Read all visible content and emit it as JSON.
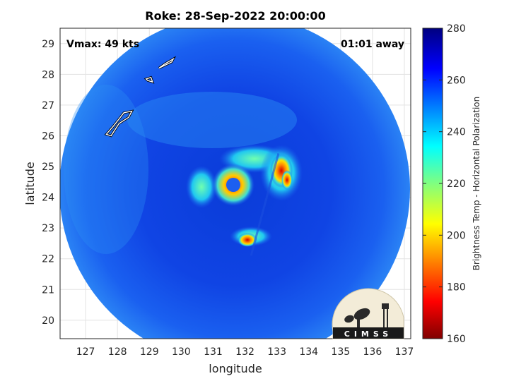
{
  "figure": {
    "title": "Roke: 28-Sep-2022 20:00:00",
    "vmax_label": "Vmax: 49 kts",
    "time_label": "01:01 away",
    "logo_text": "CIMSS"
  },
  "chart_data": {
    "type": "heatmap",
    "title": "Roke: 28-Sep-2022 20:00:00",
    "xlabel": "longitude",
    "ylabel": "latitude",
    "xlim": [
      126.2,
      137.2
    ],
    "ylim": [
      19.4,
      29.5
    ],
    "x_ticks": [
      127,
      128,
      129,
      130,
      131,
      132,
      133,
      134,
      135,
      136,
      137
    ],
    "y_ticks": [
      20,
      21,
      22,
      23,
      24,
      25,
      26,
      27,
      28,
      29
    ],
    "grid": true,
    "storm_center": {
      "lon": 131.5,
      "lat": 24.3
    },
    "colorbar": {
      "label": "Brightness Temp - Horizontal Polarization",
      "min": 160,
      "max": 280,
      "ticks": [
        160,
        180,
        200,
        220,
        240,
        260,
        280
      ],
      "colormap": "jet"
    },
    "islands": [
      [
        [
          129.3,
          28.2
        ],
        [
          129.7,
          28.4
        ],
        [
          129.75,
          28.5
        ],
        [
          129.5,
          28.35
        ],
        [
          129.3,
          28.2
        ]
      ],
      [
        [
          128.9,
          27.85
        ],
        [
          129.05,
          27.9
        ],
        [
          129.1,
          27.75
        ],
        [
          128.95,
          27.8
        ],
        [
          128.9,
          27.85
        ]
      ],
      [
        [
          127.65,
          26.05
        ],
        [
          127.9,
          26.35
        ],
        [
          128.2,
          26.75
        ],
        [
          128.45,
          26.8
        ],
        [
          128.35,
          26.6
        ],
        [
          128.05,
          26.4
        ],
        [
          127.8,
          26.0
        ],
        [
          127.65,
          26.05
        ]
      ]
    ]
  }
}
